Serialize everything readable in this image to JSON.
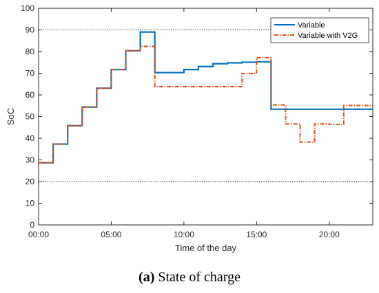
{
  "caption": {
    "tag": "(a)",
    "text": " State of charge"
  },
  "colors": {
    "variable": "#0072BD",
    "v2g": "#D95319",
    "axis": "#262626",
    "refline": "#000000"
  },
  "chart_data": {
    "type": "line",
    "step": true,
    "xlabel": "Time of the day",
    "ylabel": "SoC",
    "xlim": [
      0,
      23
    ],
    "ylim": [
      0,
      100
    ],
    "xticks": [
      0,
      5,
      10,
      15,
      20
    ],
    "xtick_labels": [
      "00:00",
      "05:00",
      "10:00",
      "15:00",
      "20:00"
    ],
    "yticks": [
      0,
      10,
      20,
      30,
      40,
      50,
      60,
      70,
      80,
      90,
      100
    ],
    "ytick_labels": [
      "0",
      "10",
      "20",
      "30",
      "40",
      "50",
      "60",
      "70",
      "80",
      "90",
      "100"
    ],
    "reference_lines": [
      20,
      90
    ],
    "legend_position": "top-right",
    "grid": false,
    "series": [
      {
        "name": "Variable",
        "style": "solid",
        "x": [
          0,
          1,
          2,
          3,
          4,
          5,
          6,
          7,
          8,
          9,
          10,
          11,
          12,
          13,
          14,
          15,
          16,
          17,
          18,
          19,
          20,
          21,
          22,
          23
        ],
        "values": [
          28.7,
          37.3,
          45.8,
          54.4,
          63.1,
          71.7,
          80.4,
          89,
          70.3,
          70.3,
          71.7,
          73.1,
          74.4,
          74.8,
          75.1,
          75.3,
          53.4,
          53.4,
          53.4,
          53.4,
          53.4,
          53.4,
          53.4,
          53.4
        ]
      },
      {
        "name": "Variable with V2G",
        "style": "dashdot",
        "x": [
          0,
          1,
          2,
          3,
          4,
          5,
          6,
          7,
          8,
          9,
          10,
          11,
          12,
          13,
          14,
          15,
          16,
          17,
          18,
          19,
          20,
          21,
          22,
          23
        ],
        "values": [
          28.7,
          37.3,
          45.8,
          54.4,
          63.1,
          71.7,
          80.4,
          82.4,
          63.8,
          63.8,
          63.8,
          63.8,
          63.8,
          63.8,
          69.9,
          77.2,
          55.4,
          46.6,
          38.2,
          46.6,
          46.4,
          55.1,
          55.1,
          55.1
        ]
      }
    ]
  }
}
